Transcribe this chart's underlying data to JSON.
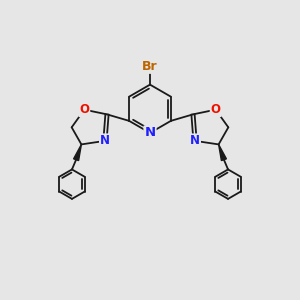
{
  "bg_color": "#e6e6e6",
  "bond_color": "#1a1a1a",
  "bond_width": 1.3,
  "N_color": "#2020ff",
  "O_color": "#ee1100",
  "Br_color": "#bb6600",
  "font_size_atom": 8.5,
  "figsize": [
    3.0,
    3.0
  ],
  "dpi": 100,
  "xlim": [
    0,
    10
  ],
  "ylim": [
    0,
    10
  ]
}
